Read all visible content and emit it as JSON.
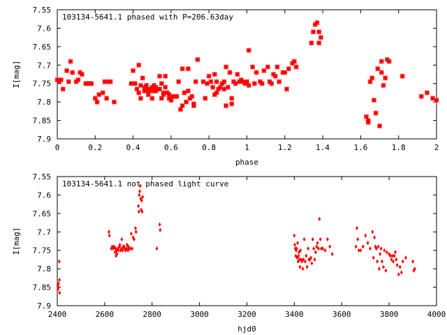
{
  "chart_data": [
    {
      "type": "scatter",
      "title": "103134-5641.1 phased with P=206.63day",
      "xlabel": "phase",
      "ylabel": "I[mag]",
      "xlim": [
        0,
        2
      ],
      "ylim": [
        7.55,
        7.9
      ],
      "y_inverted": true,
      "grid": false,
      "legend": "none",
      "color": "#ff0000",
      "x_ticks": [
        "0",
        "0.2",
        "0.4",
        "0.6",
        "0.8",
        "1",
        "1.2",
        "1.4",
        "1.6",
        "1.8",
        "2"
      ],
      "y_ticks": [
        "7.55",
        "7.6",
        "7.65",
        "7.7",
        "7.75",
        "7.8",
        "7.85",
        "7.9"
      ],
      "points": [
        [
          0.0,
          7.74
        ],
        [
          0.01,
          7.745
        ],
        [
          0.02,
          7.74
        ],
        [
          0.03,
          7.765
        ],
        [
          0.05,
          7.715
        ],
        [
          0.06,
          7.745
        ],
        [
          0.07,
          7.69
        ],
        [
          0.08,
          7.72
        ],
        [
          0.1,
          7.745
        ],
        [
          0.11,
          7.74
        ],
        [
          0.12,
          7.72
        ],
        [
          0.13,
          7.725
        ],
        [
          0.15,
          7.75
        ],
        [
          0.16,
          7.75
        ],
        [
          0.17,
          7.75
        ],
        [
          0.18,
          7.75
        ],
        [
          0.2,
          7.79
        ],
        [
          0.21,
          7.8
        ],
        [
          0.22,
          7.78
        ],
        [
          0.24,
          7.775
        ],
        [
          0.25,
          7.745
        ],
        [
          0.26,
          7.79
        ],
        [
          0.27,
          7.745
        ],
        [
          0.28,
          7.745
        ],
        [
          0.3,
          7.8
        ],
        [
          0.39,
          7.75
        ],
        [
          0.4,
          7.715
        ],
        [
          0.41,
          7.75
        ],
        [
          0.42,
          7.765
        ],
        [
          0.43,
          7.775
        ],
        [
          0.43,
          7.7
        ],
        [
          0.44,
          7.755
        ],
        [
          0.44,
          7.79
        ],
        [
          0.45,
          7.735
        ],
        [
          0.46,
          7.77
        ],
        [
          0.46,
          7.76
        ],
        [
          0.47,
          7.77
        ],
        [
          0.47,
          7.755
        ],
        [
          0.48,
          7.78
        ],
        [
          0.48,
          7.765
        ],
        [
          0.49,
          7.765
        ],
        [
          0.49,
          7.77
        ],
        [
          0.5,
          7.79
        ],
        [
          0.5,
          7.76
        ],
        [
          0.51,
          7.77
        ],
        [
          0.51,
          7.755
        ],
        [
          0.52,
          7.77
        ],
        [
          0.52,
          7.76
        ],
        [
          0.53,
          7.765
        ],
        [
          0.54,
          7.765
        ],
        [
          0.54,
          7.73
        ],
        [
          0.55,
          7.75
        ],
        [
          0.55,
          7.79
        ],
        [
          0.56,
          7.78
        ],
        [
          0.56,
          7.775
        ],
        [
          0.57,
          7.73
        ],
        [
          0.57,
          7.76
        ],
        [
          0.58,
          7.775
        ],
        [
          0.59,
          7.78
        ],
        [
          0.59,
          7.79
        ],
        [
          0.6,
          7.795
        ],
        [
          0.6,
          7.795
        ],
        [
          0.61,
          7.785
        ],
        [
          0.62,
          7.785
        ],
        [
          0.63,
          7.785
        ],
        [
          0.64,
          7.745
        ],
        [
          0.65,
          7.82
        ],
        [
          0.66,
          7.81
        ],
        [
          0.66,
          7.71
        ],
        [
          0.67,
          7.775
        ],
        [
          0.68,
          7.8
        ],
        [
          0.69,
          7.71
        ],
        [
          0.69,
          7.77
        ],
        [
          0.7,
          7.79
        ],
        [
          0.71,
          7.785
        ],
        [
          0.72,
          7.81
        ],
        [
          0.72,
          7.805
        ],
        [
          0.73,
          7.745
        ],
        [
          0.74,
          7.685
        ],
        [
          0.77,
          7.745
        ],
        [
          0.78,
          7.79
        ],
        [
          0.79,
          7.75
        ],
        [
          0.8,
          7.73
        ],
        [
          0.81,
          7.745
        ],
        [
          0.82,
          7.76
        ],
        [
          0.83,
          7.725
        ],
        [
          0.83,
          7.78
        ],
        [
          0.84,
          7.775
        ],
        [
          0.84,
          7.745
        ],
        [
          0.85,
          7.765
        ],
        [
          0.86,
          7.76
        ],
        [
          0.87,
          7.75
        ],
        [
          0.87,
          7.75
        ],
        [
          0.88,
          7.745
        ],
        [
          0.88,
          7.765
        ],
        [
          0.89,
          7.81
        ],
        [
          0.89,
          7.705
        ],
        [
          0.9,
          7.76
        ],
        [
          0.91,
          7.72
        ],
        [
          0.92,
          7.79
        ],
        [
          0.92,
          7.805
        ],
        [
          0.93,
          7.745
        ],
        [
          0.94,
          7.75
        ],
        [
          0.95,
          7.725
        ],
        [
          0.96,
          7.745
        ],
        [
          0.97,
          7.74
        ],
        [
          0.98,
          7.745
        ],
        [
          0.99,
          7.75
        ],
        [
          1.0,
          7.745
        ],
        [
          1.01,
          7.66
        ],
        [
          1.01,
          7.755
        ],
        [
          1.03,
          7.705
        ],
        [
          1.04,
          7.75
        ],
        [
          1.05,
          7.72
        ],
        [
          1.07,
          7.745
        ],
        [
          1.08,
          7.75
        ],
        [
          1.09,
          7.715
        ],
        [
          1.11,
          7.705
        ],
        [
          1.12,
          7.745
        ],
        [
          1.13,
          7.75
        ],
        [
          1.14,
          7.725
        ],
        [
          1.15,
          7.73
        ],
        [
          1.16,
          7.705
        ],
        [
          1.17,
          7.745
        ],
        [
          1.19,
          7.72
        ],
        [
          1.2,
          7.72
        ],
        [
          1.21,
          7.765
        ],
        [
          1.22,
          7.71
        ],
        [
          1.24,
          7.695
        ],
        [
          1.25,
          7.69
        ],
        [
          1.26,
          7.705
        ],
        [
          1.34,
          7.64
        ],
        [
          1.35,
          7.61
        ],
        [
          1.36,
          7.59
        ],
        [
          1.37,
          7.585
        ],
        [
          1.38,
          7.61
        ],
        [
          1.38,
          7.64
        ],
        [
          1.39,
          7.625
        ],
        [
          1.63,
          7.84
        ],
        [
          1.64,
          7.85
        ],
        [
          1.64,
          7.855
        ],
        [
          1.65,
          7.745
        ],
        [
          1.66,
          7.735
        ],
        [
          1.67,
          7.795
        ],
        [
          1.68,
          7.83
        ],
        [
          1.69,
          7.71
        ],
        [
          1.7,
          7.865
        ],
        [
          1.71,
          7.72
        ],
        [
          1.71,
          7.69
        ],
        [
          1.72,
          7.755
        ],
        [
          1.73,
          7.735
        ],
        [
          1.74,
          7.685
        ],
        [
          1.75,
          7.69
        ],
        [
          1.82,
          7.73
        ],
        [
          1.92,
          7.785
        ],
        [
          1.95,
          7.775
        ],
        [
          1.98,
          7.79
        ],
        [
          2.0,
          7.795
        ]
      ]
    },
    {
      "type": "scatter",
      "title": "103134-5641.1 not phased light curve",
      "xlabel": "hjd0",
      "ylabel": "I[mag]",
      "xlim": [
        2400,
        4000
      ],
      "ylim": [
        7.55,
        7.9
      ],
      "y_inverted": true,
      "grid": false,
      "legend": "none",
      "color": "#ff0000",
      "x_ticks": [
        "2400",
        "2600",
        "2800",
        "3000",
        "3200",
        "3400",
        "3600",
        "3800",
        "4000"
      ],
      "y_ticks": [
        "7.55",
        "7.6",
        "7.65",
        "7.7",
        "7.75",
        "7.8",
        "7.85",
        "7.9"
      ],
      "points": [
        [
          2402,
          7.845
        ],
        [
          2403,
          7.855
        ],
        [
          2404,
          7.85
        ],
        [
          2405,
          7.84
        ],
        [
          2408,
          7.78
        ],
        [
          2409,
          7.83
        ],
        [
          2410,
          7.865
        ],
        [
          2618,
          7.7
        ],
        [
          2620,
          7.71
        ],
        [
          2628,
          7.745
        ],
        [
          2632,
          7.74
        ],
        [
          2636,
          7.745
        ],
        [
          2640,
          7.74
        ],
        [
          2644,
          7.755
        ],
        [
          2646,
          7.745
        ],
        [
          2648,
          7.765
        ],
        [
          2650,
          7.75
        ],
        [
          2652,
          7.76
        ],
        [
          2656,
          7.745
        ],
        [
          2658,
          7.75
        ],
        [
          2662,
          7.74
        ],
        [
          2664,
          7.735
        ],
        [
          2668,
          7.75
        ],
        [
          2670,
          7.745
        ],
        [
          2672,
          7.72
        ],
        [
          2676,
          7.75
        ],
        [
          2678,
          7.74
        ],
        [
          2682,
          7.74
        ],
        [
          2684,
          7.745
        ],
        [
          2688,
          7.75
        ],
        [
          2692,
          7.745
        ],
        [
          2694,
          7.735
        ],
        [
          2698,
          7.75
        ],
        [
          2700,
          7.74
        ],
        [
          2704,
          7.745
        ],
        [
          2708,
          7.745
        ],
        [
          2712,
          7.705
        ],
        [
          2716,
          7.745
        ],
        [
          2720,
          7.715
        ],
        [
          2724,
          7.72
        ],
        [
          2730,
          7.69
        ],
        [
          2732,
          7.7
        ],
        [
          2742,
          7.63
        ],
        [
          2744,
          7.645
        ],
        [
          2746,
          7.6
        ],
        [
          2748,
          7.59
        ],
        [
          2750,
          7.575
        ],
        [
          2752,
          7.61
        ],
        [
          2754,
          7.64
        ],
        [
          2756,
          7.615
        ],
        [
          2758,
          7.645
        ],
        [
          2760,
          7.605
        ],
        [
          2820,
          7.745
        ],
        [
          2832,
          7.68
        ],
        [
          2834,
          7.695
        ],
        [
          3400,
          7.71
        ],
        [
          3402,
          7.735
        ],
        [
          3404,
          7.745
        ],
        [
          3406,
          7.765
        ],
        [
          3408,
          7.75
        ],
        [
          3410,
          7.745
        ],
        [
          3412,
          7.77
        ],
        [
          3414,
          7.73
        ],
        [
          3416,
          7.78
        ],
        [
          3418,
          7.765
        ],
        [
          3420,
          7.755
        ],
        [
          3422,
          7.775
        ],
        [
          3424,
          7.795
        ],
        [
          3426,
          7.75
        ],
        [
          3428,
          7.775
        ],
        [
          3432,
          7.78
        ],
        [
          3436,
          7.8
        ],
        [
          3438,
          7.775
        ],
        [
          3442,
          7.72
        ],
        [
          3446,
          7.78
        ],
        [
          3450,
          7.765
        ],
        [
          3454,
          7.795
        ],
        [
          3458,
          7.745
        ],
        [
          3462,
          7.775
        ],
        [
          3466,
          7.775
        ],
        [
          3470,
          7.77
        ],
        [
          3474,
          7.785
        ],
        [
          3478,
          7.72
        ],
        [
          3482,
          7.745
        ],
        [
          3486,
          7.775
        ],
        [
          3490,
          7.755
        ],
        [
          3494,
          7.74
        ],
        [
          3498,
          7.73
        ],
        [
          3502,
          7.745
        ],
        [
          3506,
          7.665
        ],
        [
          3510,
          7.72
        ],
        [
          3514,
          7.745
        ],
        [
          3520,
          7.745
        ],
        [
          3530,
          7.75
        ],
        [
          3540,
          7.72
        ],
        [
          3550,
          7.74
        ],
        [
          3560,
          7.76
        ],
        [
          3660,
          7.74
        ],
        [
          3664,
          7.69
        ],
        [
          3668,
          7.72
        ],
        [
          3672,
          7.75
        ],
        [
          3680,
          7.75
        ],
        [
          3690,
          7.74
        ],
        [
          3700,
          7.71
        ],
        [
          3710,
          7.73
        ],
        [
          3720,
          7.745
        ],
        [
          3730,
          7.7
        ],
        [
          3734,
          7.77
        ],
        [
          3738,
          7.715
        ],
        [
          3742,
          7.74
        ],
        [
          3746,
          7.745
        ],
        [
          3750,
          7.78
        ],
        [
          3754,
          7.74
        ],
        [
          3758,
          7.8
        ],
        [
          3762,
          7.76
        ],
        [
          3766,
          7.745
        ],
        [
          3770,
          7.78
        ],
        [
          3776,
          7.795
        ],
        [
          3780,
          7.75
        ],
        [
          3786,
          7.805
        ],
        [
          3790,
          7.755
        ],
        [
          3800,
          7.76
        ],
        [
          3806,
          7.765
        ],
        [
          3810,
          7.775
        ],
        [
          3814,
          7.765
        ],
        [
          3818,
          7.78
        ],
        [
          3822,
          7.765
        ],
        [
          3826,
          7.755
        ],
        [
          3830,
          7.775
        ],
        [
          3834,
          7.79
        ],
        [
          3840,
          7.815
        ],
        [
          3846,
          7.795
        ],
        [
          3852,
          7.81
        ],
        [
          3858,
          7.78
        ],
        [
          3870,
          7.77
        ],
        [
          3900,
          7.78
        ],
        [
          3904,
          7.805
        ],
        [
          3908,
          7.8
        ]
      ]
    }
  ]
}
